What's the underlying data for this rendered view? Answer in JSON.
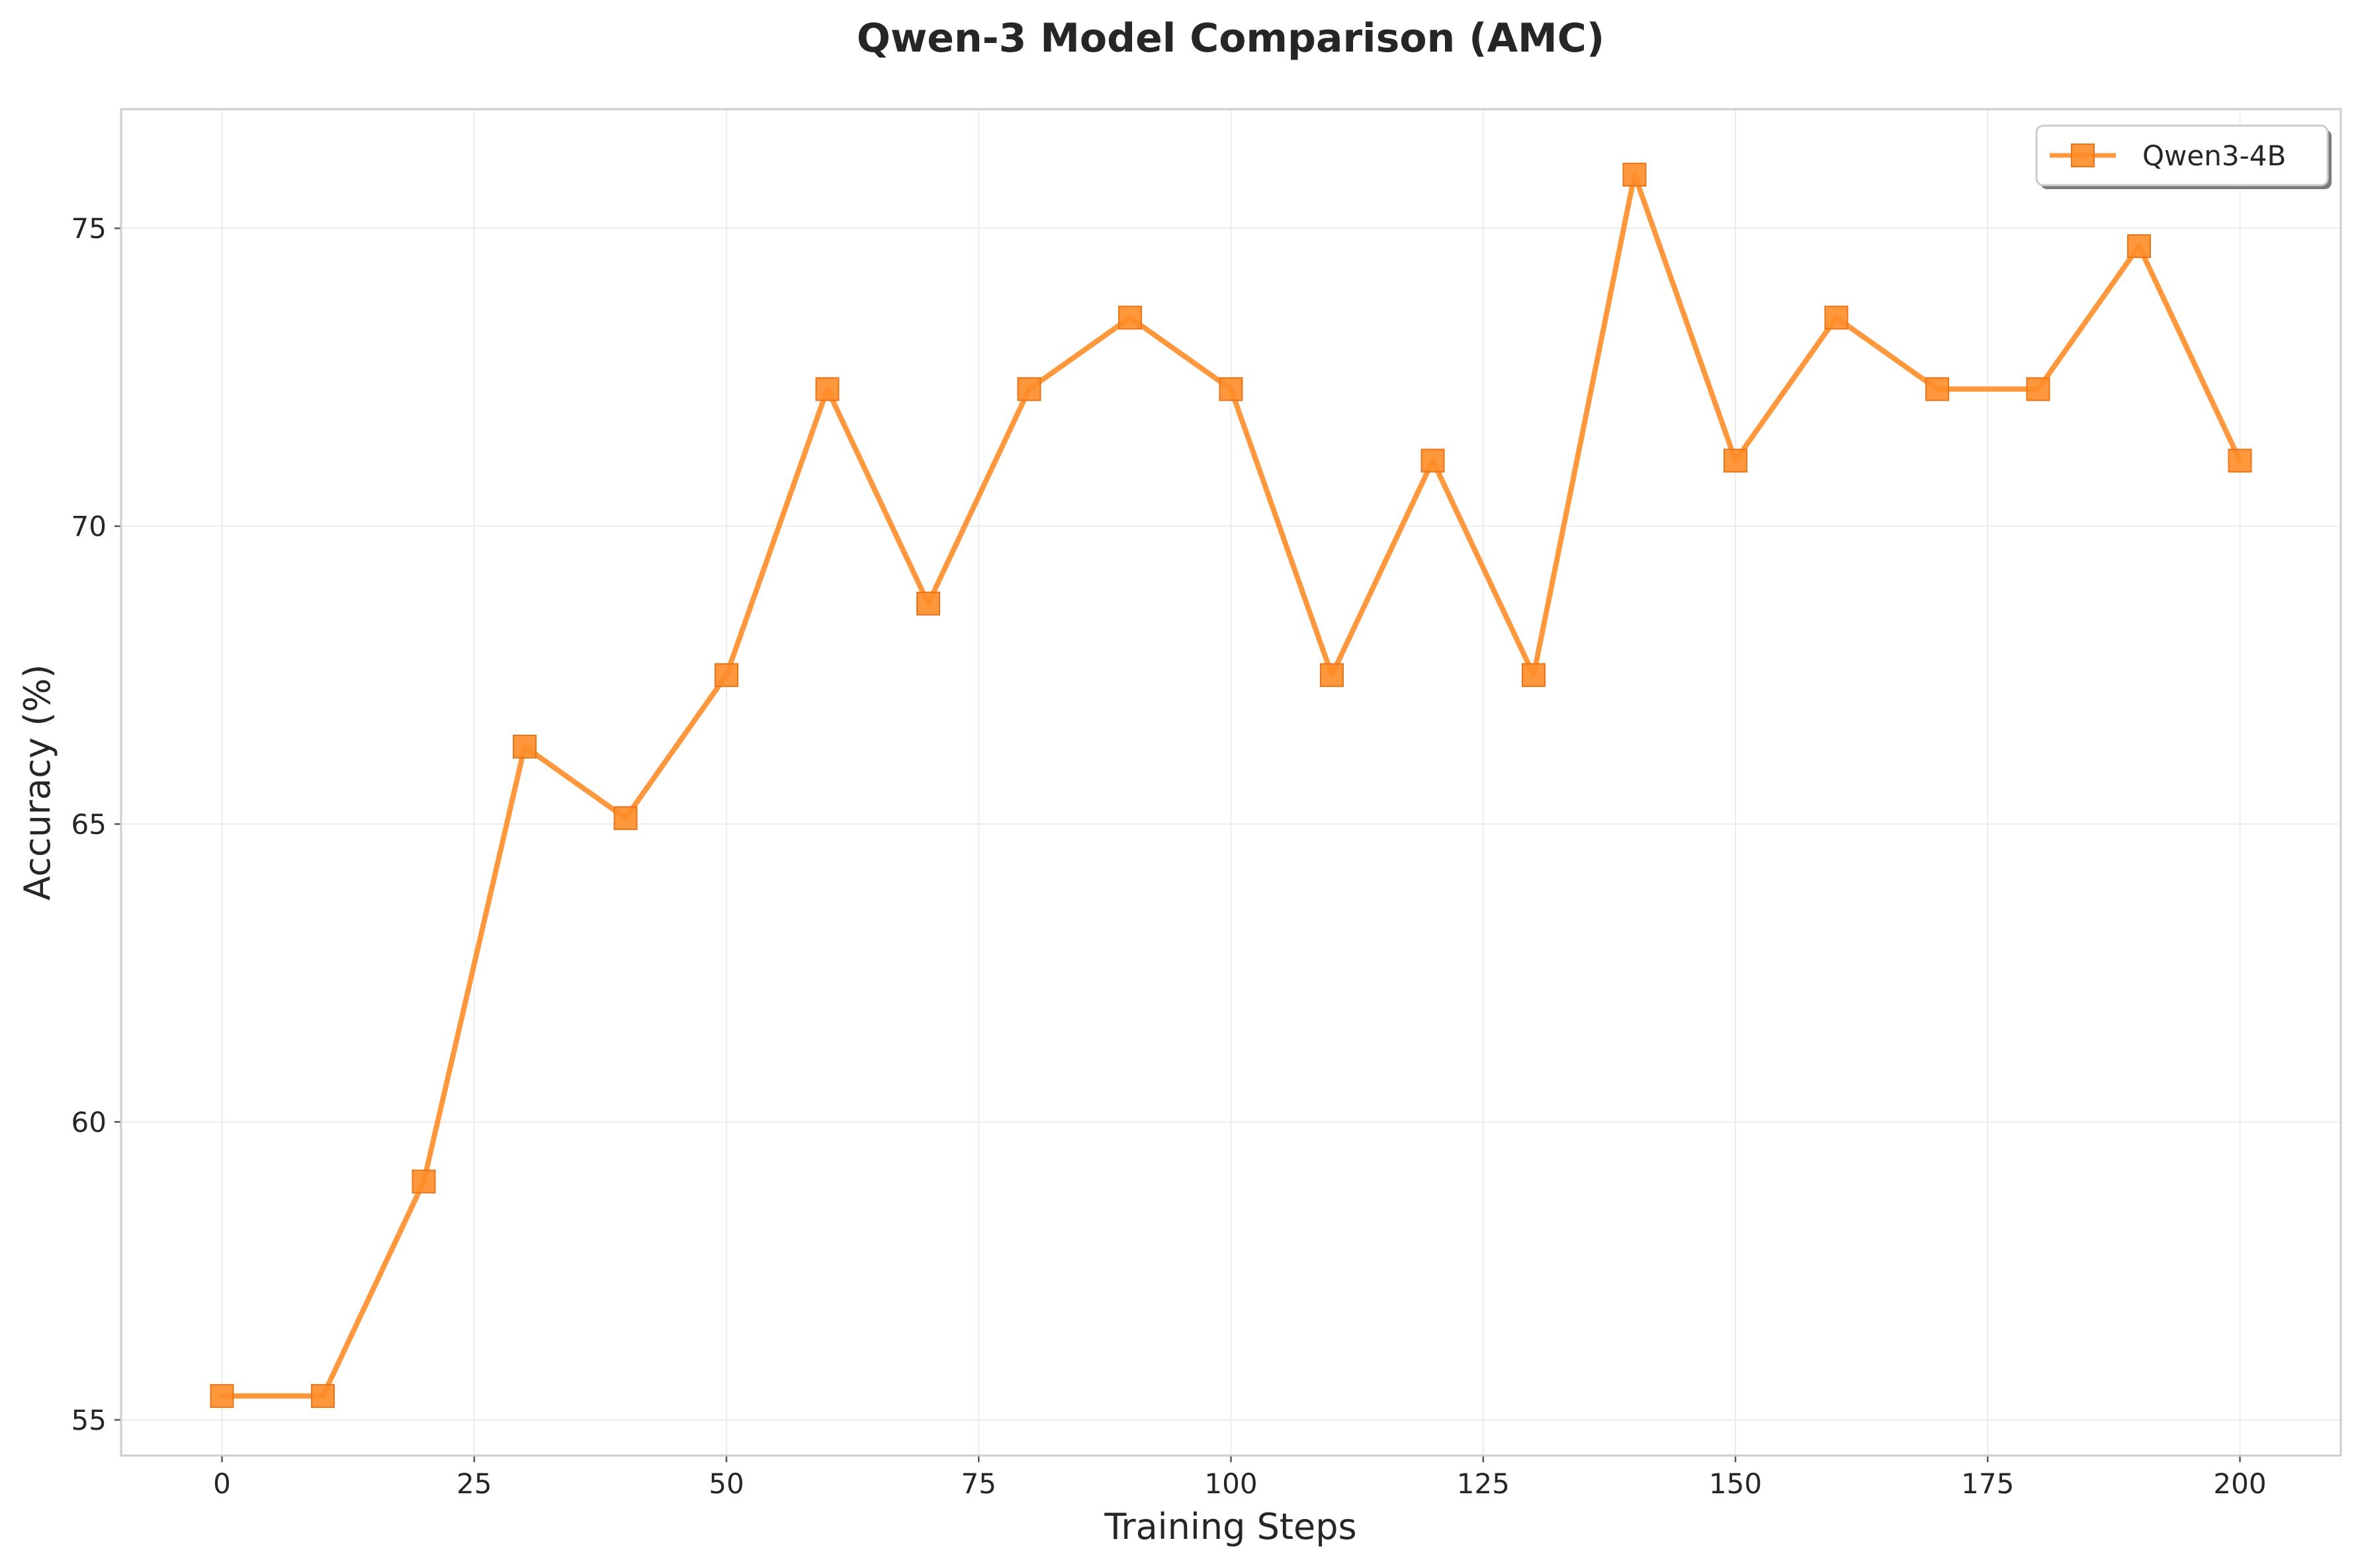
{
  "chart_data": {
    "type": "line",
    "title": "Qwen-3 Model Comparison (AMC)",
    "xlabel": "Training Steps",
    "ylabel": "Accuracy (%)",
    "xlim": [
      -10,
      210
    ],
    "ylim": [
      54.4,
      77.0
    ],
    "xticks": [
      0,
      25,
      50,
      75,
      100,
      125,
      150,
      175,
      200
    ],
    "yticks": [
      55,
      60,
      65,
      70,
      75
    ],
    "grid": true,
    "legend": "top-right",
    "x": [
      0,
      10,
      20,
      30,
      40,
      50,
      60,
      70,
      80,
      90,
      100,
      110,
      120,
      130,
      140,
      150,
      160,
      170,
      180,
      190,
      200
    ],
    "series": [
      {
        "name": "Qwen3-4B",
        "color": "#FF8C28",
        "marker": "square",
        "values": [
          55.4,
          55.4,
          59.0,
          66.3,
          65.1,
          67.5,
          72.3,
          68.7,
          72.3,
          73.5,
          72.3,
          67.5,
          71.1,
          67.5,
          75.9,
          71.1,
          73.5,
          72.3,
          72.3,
          74.7,
          71.1
        ]
      }
    ]
  }
}
